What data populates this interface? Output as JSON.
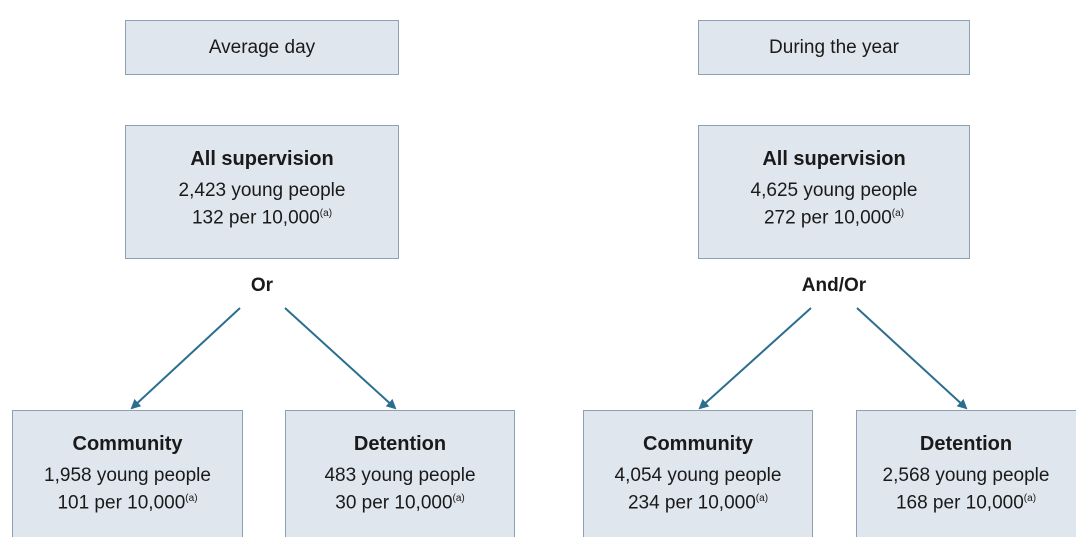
{
  "panels": [
    {
      "header": "Average day",
      "top": {
        "title": "All supervision",
        "count": "2,423 young people",
        "rate": "132 per 10,000",
        "note": "(a)"
      },
      "connector": "Or",
      "children": [
        {
          "title": "Community",
          "count": "1,958 young people",
          "rate": "101 per 10,000",
          "note": "(a)"
        },
        {
          "title": "Detention",
          "count": "483 young people",
          "rate": "30 per 10,000",
          "note": "(a)"
        }
      ]
    },
    {
      "header": "During the year",
      "top": {
        "title": "All supervision",
        "count": "4,625 young people",
        "rate": "272 per 10,000",
        "note": "(a)"
      },
      "connector": "And/Or",
      "children": [
        {
          "title": "Community",
          "count": "4,054 young people",
          "rate": "234 per 10,000",
          "note": "(a)"
        },
        {
          "title": "Detention",
          "count": "2,568 young people",
          "rate": "168 per 10,000",
          "note": "(a)"
        }
      ]
    }
  ]
}
